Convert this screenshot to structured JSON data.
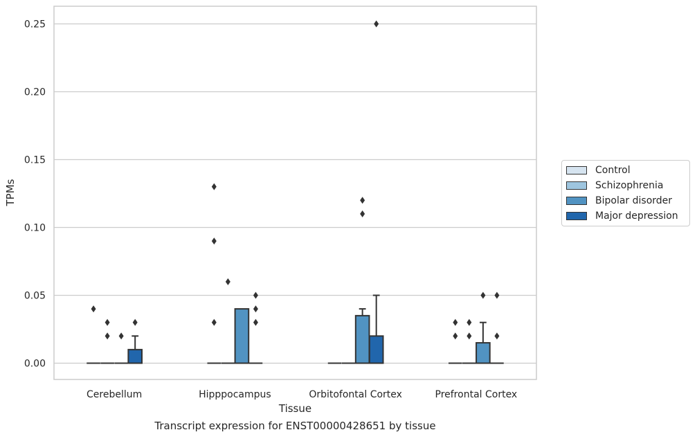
{
  "chart_data": {
    "type": "box",
    "title": "",
    "caption": "Transcript expression for ENST00000428651 by tissue",
    "xlabel": "Tissue",
    "ylabel": "TPMs",
    "ylim": [
      -0.012,
      0.263
    ],
    "yticks": [
      "0.00",
      "0.05",
      "0.10",
      "0.15",
      "0.20",
      "0.25"
    ],
    "ytick_values": [
      0.0,
      0.05,
      0.1,
      0.15,
      0.2,
      0.25
    ],
    "grid": true,
    "legend_position": "right",
    "categories": [
      "Cerebellum",
      "Hipppocampus",
      "Orbitofontal Cortex",
      "Prefrontal Cortex"
    ],
    "series": [
      {
        "name": "Control",
        "color": "#d6e4f0",
        "boxes": [
          {
            "q1": 0,
            "median": 0,
            "q3": 0,
            "whisker_low": 0,
            "whisker_high": 0,
            "outliers": [
              0.04
            ]
          },
          {
            "q1": 0,
            "median": 0,
            "q3": 0,
            "whisker_low": 0,
            "whisker_high": 0,
            "outliers": [
              0.03,
              0.09,
              0.13
            ]
          },
          {
            "q1": 0,
            "median": 0,
            "q3": 0,
            "whisker_low": 0,
            "whisker_high": 0,
            "outliers": []
          },
          {
            "q1": 0,
            "median": 0,
            "q3": 0,
            "whisker_low": 0,
            "whisker_high": 0,
            "outliers": [
              0.02,
              0.03
            ]
          }
        ]
      },
      {
        "name": "Schizophrenia",
        "color": "#9ec5df",
        "boxes": [
          {
            "q1": 0,
            "median": 0,
            "q3": 0,
            "whisker_low": 0,
            "whisker_high": 0,
            "outliers": [
              0.02,
              0.03
            ]
          },
          {
            "q1": 0,
            "median": 0,
            "q3": 0,
            "whisker_low": 0,
            "whisker_high": 0,
            "outliers": [
              0.06
            ]
          },
          {
            "q1": 0,
            "median": 0,
            "q3": 0,
            "whisker_low": 0,
            "whisker_high": 0,
            "outliers": []
          },
          {
            "q1": 0,
            "median": 0,
            "q3": 0,
            "whisker_low": 0,
            "whisker_high": 0,
            "outliers": [
              0.02,
              0.03
            ]
          }
        ]
      },
      {
        "name": "Bipolar disorder",
        "color": "#5193c2",
        "boxes": [
          {
            "q1": 0,
            "median": 0,
            "q3": 0,
            "whisker_low": 0,
            "whisker_high": 0,
            "outliers": [
              0.02
            ]
          },
          {
            "q1": 0,
            "median": 0,
            "q3": 0.04,
            "whisker_low": 0,
            "whisker_high": 0.04,
            "outliers": []
          },
          {
            "q1": 0,
            "median": 0,
            "q3": 0.035,
            "whisker_low": 0,
            "whisker_high": 0.04,
            "outliers": [
              0.11,
              0.12
            ]
          },
          {
            "q1": 0,
            "median": 0,
            "q3": 0.015,
            "whisker_low": 0,
            "whisker_high": 0.03,
            "outliers": [
              0.05
            ]
          }
        ]
      },
      {
        "name": "Major depression",
        "color": "#2166ac",
        "boxes": [
          {
            "q1": 0,
            "median": 0,
            "q3": 0.01,
            "whisker_low": 0,
            "whisker_high": 0.02,
            "outliers": [
              0.03
            ]
          },
          {
            "q1": 0,
            "median": 0,
            "q3": 0,
            "whisker_low": 0,
            "whisker_high": 0,
            "outliers": [
              0.03,
              0.04,
              0.05
            ]
          },
          {
            "q1": 0,
            "median": 0,
            "q3": 0.02,
            "whisker_low": 0,
            "whisker_high": 0.05,
            "outliers": [
              0.25
            ]
          },
          {
            "q1": 0,
            "median": 0,
            "q3": 0,
            "whisker_low": 0,
            "whisker_high": 0,
            "outliers": [
              0.02,
              0.05
            ]
          }
        ]
      }
    ]
  }
}
